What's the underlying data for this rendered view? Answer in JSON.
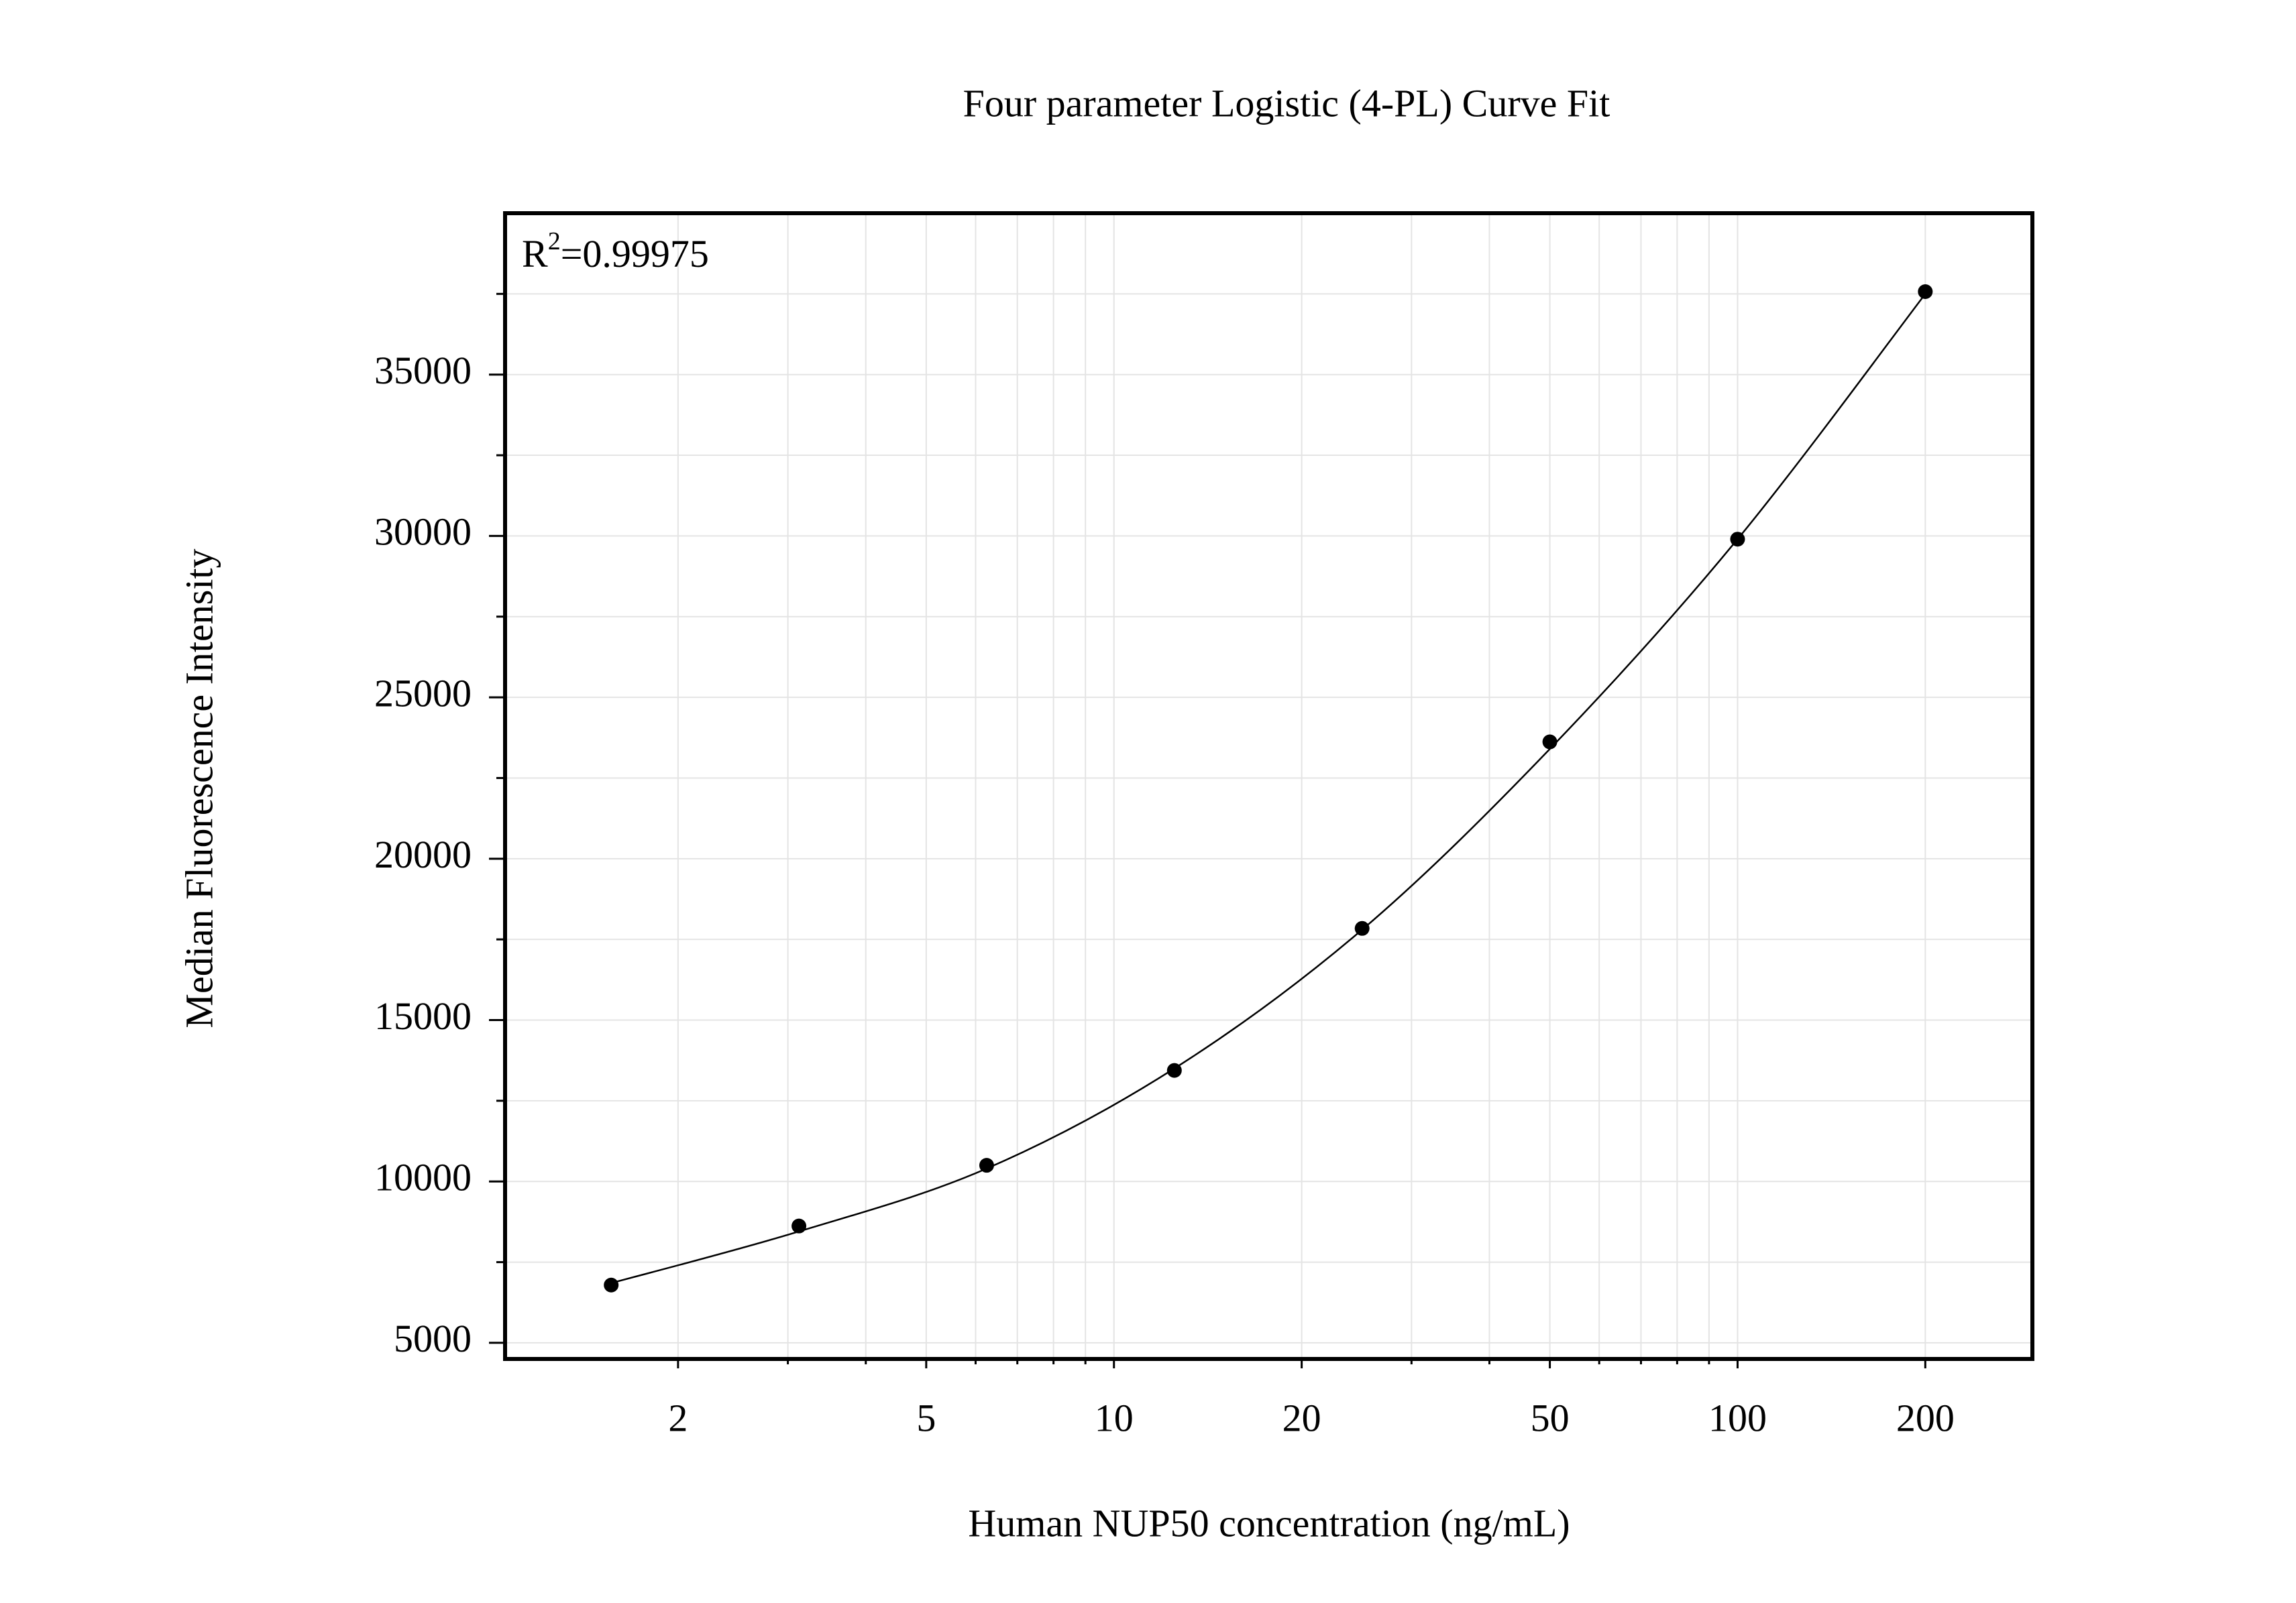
{
  "chart_data": {
    "type": "scatter",
    "title": "Four parameter Logistic (4-PL) Curve Fit",
    "xlabel": "Human NUP50 concentration (ng/mL)",
    "ylabel": "Median Fluorescence Intensity",
    "annotation": {
      "base": "R",
      "sup": "2",
      "text": "=0.99975"
    },
    "x": [
      1.5625,
      3.125,
      6.25,
      12.5,
      25,
      50,
      100,
      200
    ],
    "series": [
      {
        "style": "points",
        "color": "#000000",
        "values": [
          6790,
          8620,
          10500,
          13440,
          17840,
          23620,
          29900,
          37570
        ]
      },
      {
        "style": "line",
        "color": "#000000",
        "values": [
          6850,
          8450,
          10400,
          13500,
          17800,
          23400,
          29900,
          37500
        ]
      }
    ],
    "xscale": "log",
    "xlim": [
      1.056,
      297
    ],
    "xticks": [
      2,
      5,
      10,
      20,
      50,
      100,
      200
    ],
    "xminorticks": [
      3,
      4,
      6,
      7,
      8,
      9,
      30,
      40,
      60,
      70,
      80,
      90
    ],
    "ylim": [
      4500,
      40000
    ],
    "yticks": [
      5000,
      10000,
      15000,
      20000,
      25000,
      30000,
      35000
    ],
    "yminorticks": [
      7500,
      12500,
      17500,
      22500,
      27500,
      32500,
      37500
    ],
    "grid": true
  }
}
